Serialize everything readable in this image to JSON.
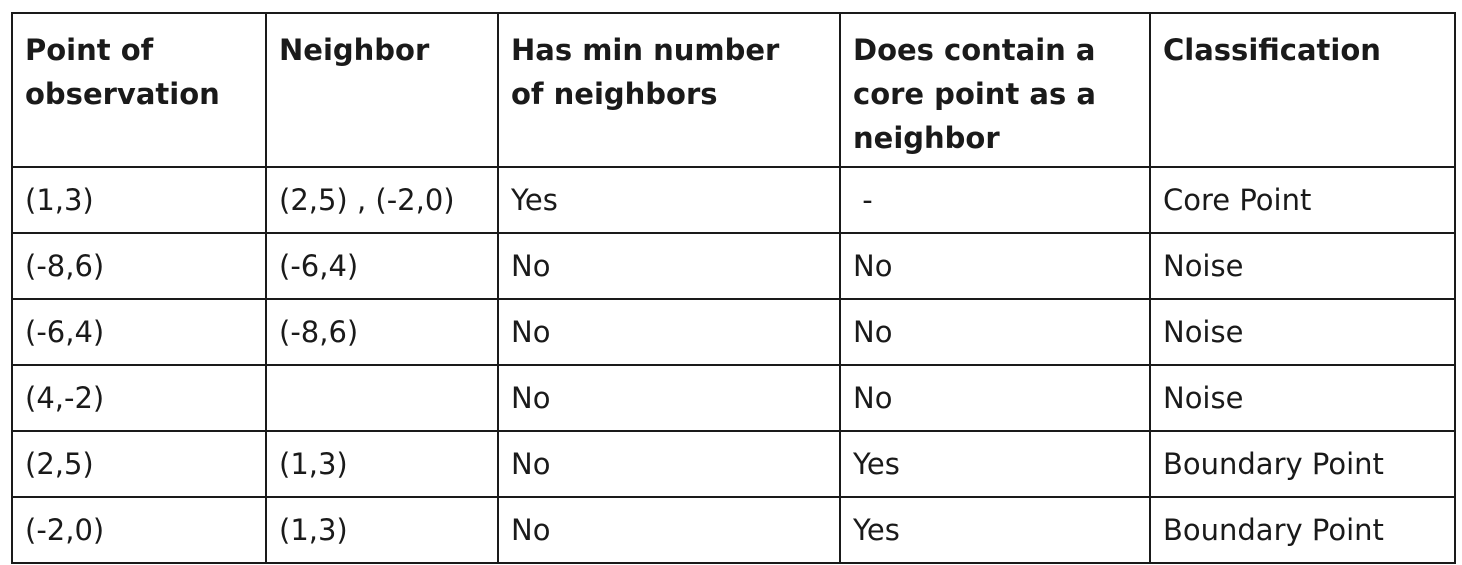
{
  "table": {
    "headers": [
      [
        "Point of",
        "observation"
      ],
      [
        "Neighbor"
      ],
      [
        "Has min number",
        "of neighbors"
      ],
      [
        "Does contain a",
        "core point as a",
        "neighbor"
      ],
      [
        "Classification"
      ]
    ],
    "rows": [
      [
        "(1,3)",
        "(2,5) , (-2,0)",
        "Yes",
        " -",
        "Core Point"
      ],
      [
        "(-8,6)",
        "(-6,4)",
        "No",
        "No",
        "Noise"
      ],
      [
        "(-6,4)",
        "(-8,6)",
        "No",
        "No",
        "Noise"
      ],
      [
        "(4,-2)",
        "",
        "No",
        "No",
        "Noise"
      ],
      [
        "(2,5)",
        "(1,3)",
        "No",
        "Yes",
        "Boundary Point"
      ],
      [
        "(-2,0)",
        "(1,3)",
        "No",
        "Yes",
        "Boundary Point"
      ]
    ]
  }
}
